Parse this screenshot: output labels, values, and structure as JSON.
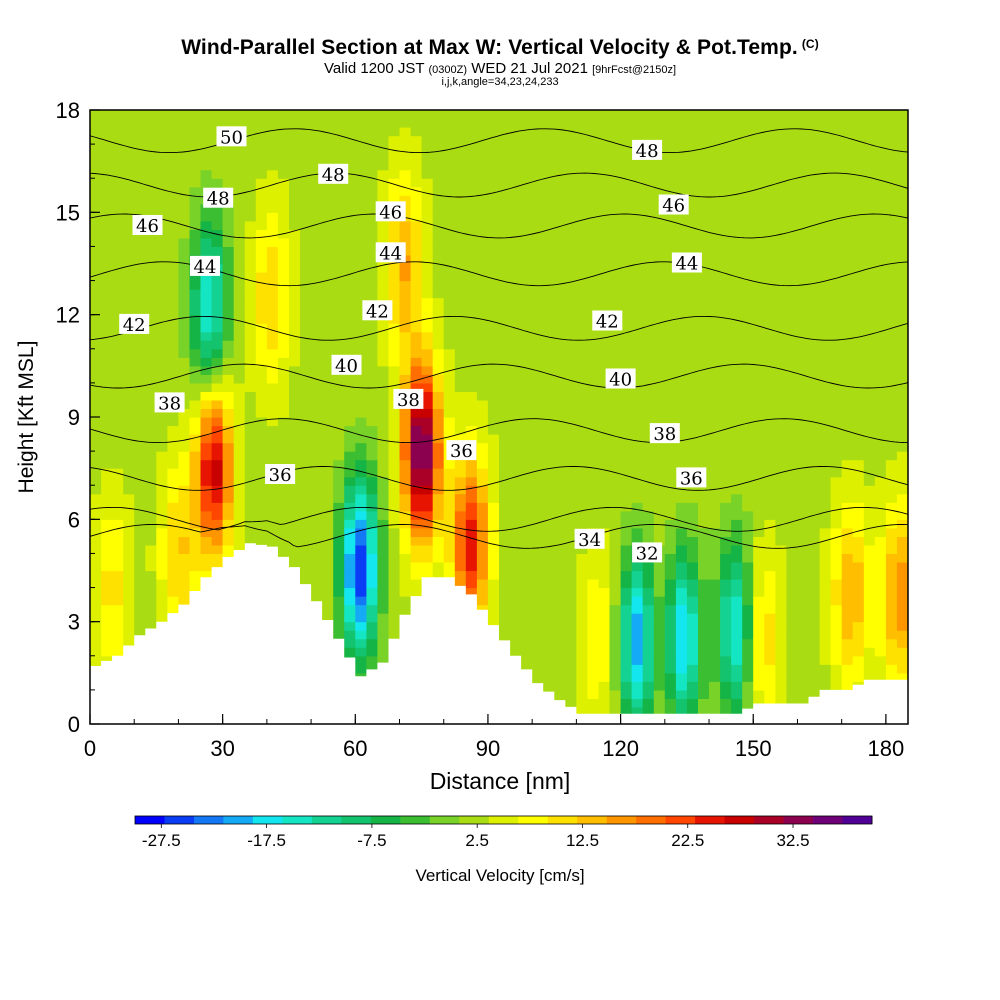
{
  "title": {
    "main": "Wind-Parallel Section at Max W: Vertical Velocity & Pot.Temp.",
    "copyright": "(C)",
    "valid_prefix": "Valid 1200 JST",
    "utc": "(0300Z)",
    "date": "WED 21 Jul 2021",
    "forecast": "[9hrFcst@2150z]",
    "params": "i,j,k,angle=34,23,24,233"
  },
  "chart_data": {
    "type": "heatmap",
    "xlabel": "Distance [nm]",
    "ylabel": "Height [Kft MSL]",
    "xlim": [
      0,
      185
    ],
    "ylim": [
      0,
      18
    ],
    "x_ticks": [
      0,
      30,
      60,
      90,
      120,
      150,
      180
    ],
    "y_ticks": [
      0,
      3,
      6,
      9,
      12,
      15,
      18
    ],
    "colorbar": {
      "label": "Vertical Velocity [cm/s]",
      "tick_labels": [
        "-27.5",
        "-17.5",
        "-7.5",
        "2.5",
        "12.5",
        "22.5",
        "32.5"
      ],
      "range": [
        -30,
        40
      ],
      "colors": [
        "#0000ff",
        "#0a3cf5",
        "#1478f5",
        "#14aaf5",
        "#14e6f0",
        "#14e6c3",
        "#14d291",
        "#14c36e",
        "#14b446",
        "#3cbe32",
        "#78d228",
        "#aadc14",
        "#dcf000",
        "#ffff00",
        "#ffe100",
        "#ffbe00",
        "#ff9600",
        "#ff6e00",
        "#ff4600",
        "#e61400",
        "#c80000",
        "#aa0028",
        "#8c0050",
        "#6e0078",
        "#500096"
      ]
    },
    "terrain": {
      "x": [
        0,
        5,
        10,
        15,
        20,
        25,
        30,
        35,
        40,
        45,
        50,
        55,
        60,
        65,
        70,
        75,
        80,
        85,
        90,
        95,
        100,
        105,
        110,
        115,
        120,
        125,
        130,
        135,
        140,
        145,
        150,
        155,
        160,
        165,
        170,
        175,
        180,
        185
      ],
      "height": [
        1.7,
        2.0,
        2.6,
        3.0,
        3.5,
        4.3,
        4.9,
        5.3,
        5.2,
        4.6,
        3.6,
        2.5,
        1.4,
        1.8,
        3.2,
        4.3,
        4.3,
        3.8,
        2.9,
        2.0,
        1.2,
        0.7,
        0.3,
        0.3,
        0.3,
        0.3,
        0.3,
        0.3,
        0.3,
        0.3,
        0.6,
        0.6,
        0.6,
        1.0,
        1.0,
        1.3,
        1.3,
        1.3
      ]
    },
    "background_w": 2.5,
    "w_features": [
      {
        "x": 28,
        "y": 7.5,
        "w": 28
      },
      {
        "x": 75,
        "y": 8.0,
        "w": 36
      },
      {
        "x": 71,
        "y": 13.5,
        "w": 15
      },
      {
        "x": 86,
        "y": 5.3,
        "w": 25
      },
      {
        "x": 41,
        "y": 12.5,
        "w": 12
      },
      {
        "x": 61,
        "y": 4.6,
        "w": -27
      },
      {
        "x": 27,
        "y": 12.2,
        "w": -17
      },
      {
        "x": 124,
        "y": 2.4,
        "w": -22
      },
      {
        "x": 134,
        "y": 2.5,
        "w": -20
      },
      {
        "x": 146,
        "y": 2.8,
        "w": -17
      },
      {
        "x": 172,
        "y": 3.8,
        "w": 15
      },
      {
        "x": 183,
        "y": 3.8,
        "w": 17
      },
      {
        "x": 20,
        "y": 5.0,
        "w": 12
      },
      {
        "x": 5,
        "y": 4.0,
        "w": 10
      },
      {
        "x": 152,
        "y": 2.5,
        "w": 12
      },
      {
        "x": 129,
        "y": 2.5,
        "w": 8
      },
      {
        "x": 115,
        "y": 2.5,
        "w": 9
      }
    ],
    "theta_contours": [
      {
        "label": "32",
        "base": 5.5,
        "label_x": 126
      },
      {
        "label": "34",
        "base": 6.0,
        "label_x": 113
      },
      {
        "label": "36",
        "base": 7.2,
        "label_x": 43
      },
      {
        "label": "38",
        "base": 8.6,
        "label_x": 18
      },
      {
        "label": "40",
        "base": 10.2,
        "label_x": 58
      },
      {
        "label": "42",
        "base": 11.6,
        "label_x": 10
      },
      {
        "label": "44",
        "base": 13.2,
        "label_x": 26
      },
      {
        "label": "46",
        "base": 14.6,
        "label_x": 13
      },
      {
        "label": "48",
        "base": 15.8,
        "label_x": 29
      },
      {
        "label": "50",
        "base": 17.1,
        "label_x": 32
      }
    ],
    "contour_labels": [
      {
        "text": "50",
        "x": 32,
        "y": 17.2
      },
      {
        "text": "48",
        "x": 29,
        "y": 15.4
      },
      {
        "text": "48",
        "x": 55,
        "y": 16.1
      },
      {
        "text": "48",
        "x": 126,
        "y": 16.8
      },
      {
        "text": "46",
        "x": 13,
        "y": 14.6
      },
      {
        "text": "46",
        "x": 68,
        "y": 15.0
      },
      {
        "text": "46",
        "x": 132,
        "y": 15.2
      },
      {
        "text": "44",
        "x": 26,
        "y": 13.4
      },
      {
        "text": "44",
        "x": 68,
        "y": 13.8
      },
      {
        "text": "44",
        "x": 135,
        "y": 13.5
      },
      {
        "text": "42",
        "x": 10,
        "y": 11.7
      },
      {
        "text": "42",
        "x": 65,
        "y": 12.1
      },
      {
        "text": "42",
        "x": 117,
        "y": 11.8
      },
      {
        "text": "40",
        "x": 58,
        "y": 10.5
      },
      {
        "text": "40",
        "x": 120,
        "y": 10.1
      },
      {
        "text": "38",
        "x": 18,
        "y": 9.4
      },
      {
        "text": "38",
        "x": 72,
        "y": 9.5
      },
      {
        "text": "38",
        "x": 130,
        "y": 8.5
      },
      {
        "text": "36",
        "x": 43,
        "y": 7.3
      },
      {
        "text": "36",
        "x": 84,
        "y": 8.0
      },
      {
        "text": "36",
        "x": 136,
        "y": 7.2
      },
      {
        "text": "34",
        "x": 113,
        "y": 5.4
      },
      {
        "text": "32",
        "x": 126,
        "y": 5.0
      }
    ]
  }
}
